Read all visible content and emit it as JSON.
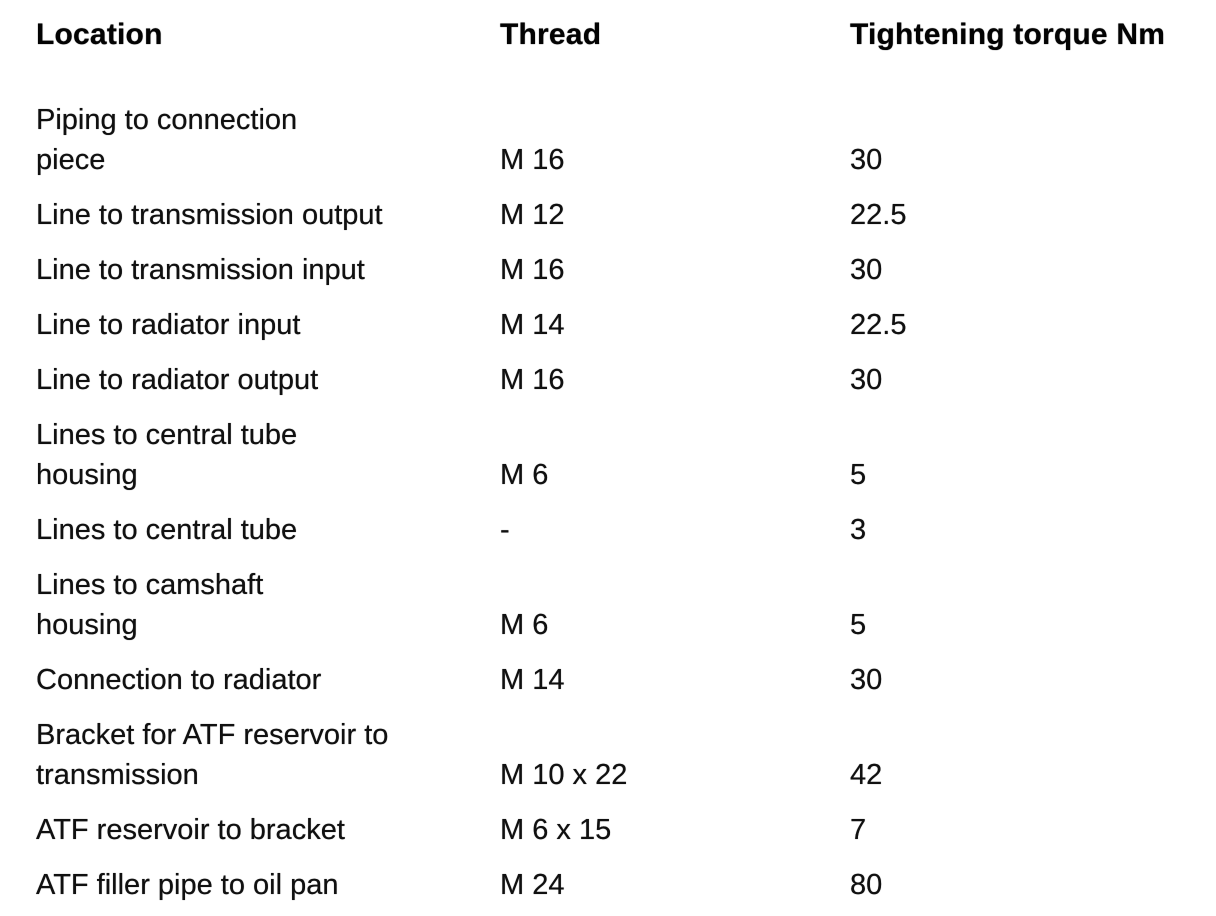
{
  "document": {
    "kind": "torque-specification-table"
  },
  "table": {
    "headers": {
      "location": "Location",
      "thread": "Thread",
      "torque": "Tightening torque Nm"
    },
    "rows": [
      {
        "location": "Piping to connection\npiece",
        "thread": "M 16",
        "torque": "30"
      },
      {
        "location": "Line to transmission output",
        "thread": "M 12",
        "torque": "22.5"
      },
      {
        "location": "Line to transmission input",
        "thread": "M 16",
        "torque": "30"
      },
      {
        "location": "Line to radiator input",
        "thread": "M 14",
        "torque": "22.5"
      },
      {
        "location": "Line to radiator output",
        "thread": "M 16",
        "torque": "30"
      },
      {
        "location": "Lines to central tube\nhousing",
        "thread": "M 6",
        "torque": "5"
      },
      {
        "location": "Lines to central tube",
        "thread": "-",
        "torque": "3"
      },
      {
        "location": "Lines to camshaft\nhousing",
        "thread": "M 6",
        "torque": "5"
      },
      {
        "location": "Connection to radiator",
        "thread": "M 14",
        "torque": "30"
      },
      {
        "location": "Bracket for ATF reservoir to\ntransmission",
        "thread": "M 10 x 22",
        "torque": "42"
      },
      {
        "location": "ATF reservoir to bracket",
        "thread": "M 6 x 15",
        "torque": "7"
      },
      {
        "location": "ATF filler pipe to oil pan",
        "thread": "M 24",
        "torque": "80"
      }
    ]
  }
}
